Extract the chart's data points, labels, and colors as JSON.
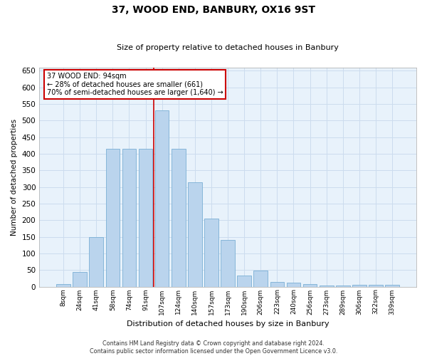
{
  "title": "37, WOOD END, BANBURY, OX16 9ST",
  "subtitle": "Size of property relative to detached houses in Banbury",
  "xlabel": "Distribution of detached houses by size in Banbury",
  "ylabel": "Number of detached properties",
  "categories": [
    "8sqm",
    "24sqm",
    "41sqm",
    "58sqm",
    "74sqm",
    "91sqm",
    "107sqm",
    "124sqm",
    "140sqm",
    "157sqm",
    "173sqm",
    "190sqm",
    "206sqm",
    "223sqm",
    "240sqm",
    "256sqm",
    "273sqm",
    "289sqm",
    "306sqm",
    "322sqm",
    "339sqm"
  ],
  "values": [
    7,
    45,
    150,
    415,
    415,
    415,
    530,
    415,
    315,
    205,
    140,
    33,
    48,
    13,
    12,
    8,
    3,
    3,
    5,
    5,
    6
  ],
  "bar_color": "#bad4ed",
  "bar_edge_color": "#7aafd4",
  "grid_color": "#ccdcee",
  "bg_color": "#e8f2fb",
  "vline_x": 5.5,
  "vline_color": "#cc0000",
  "annotation_text": "37 WOOD END: 94sqm\n← 28% of detached houses are smaller (661)\n70% of semi-detached houses are larger (1,640) →",
  "annotation_box_color": "#ffffff",
  "annotation_border_color": "#cc0000",
  "footer": "Contains HM Land Registry data © Crown copyright and database right 2024.\nContains public sector information licensed under the Open Government Licence v3.0.",
  "ylim": [
    0,
    660
  ],
  "yticks": [
    0,
    50,
    100,
    150,
    200,
    250,
    300,
    350,
    400,
    450,
    500,
    550,
    600,
    650
  ]
}
